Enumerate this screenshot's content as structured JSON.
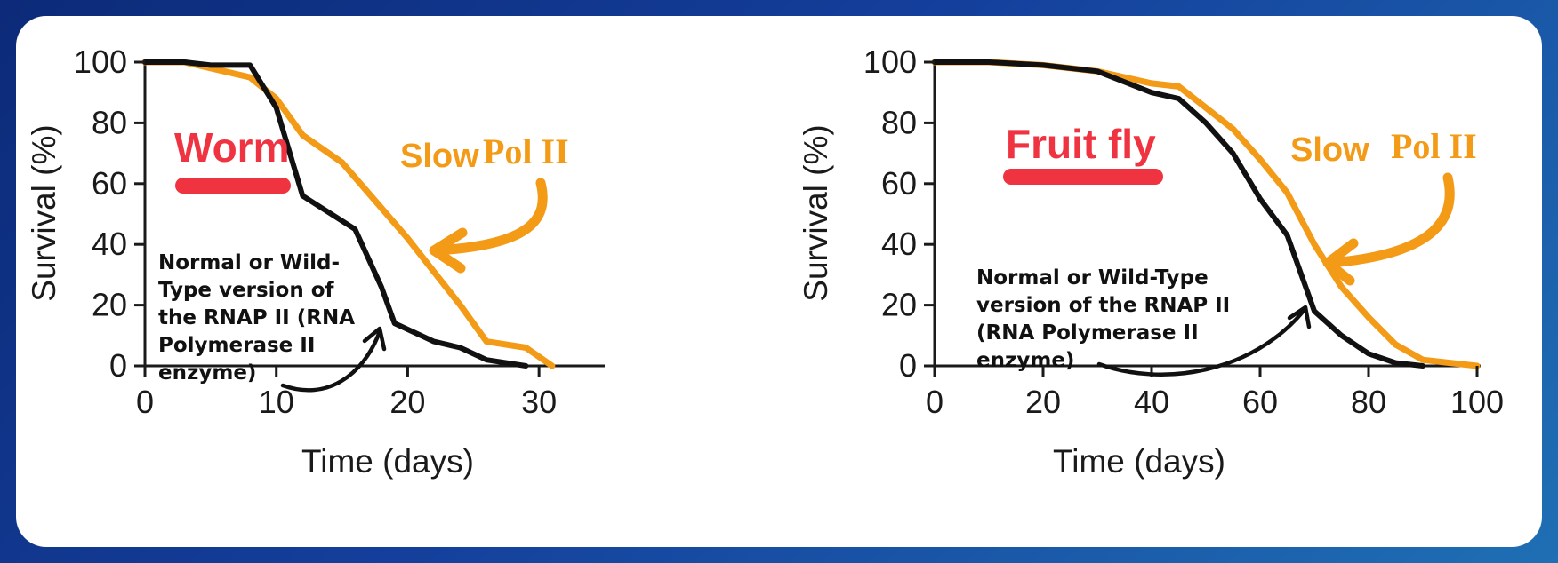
{
  "colors": {
    "slow_series": "#f39a16",
    "wildtype_series": "#111111",
    "organism_label": "#ef3340",
    "axis": "#1a1a1a"
  },
  "chart_data": [
    {
      "type": "line",
      "panel": "left",
      "organism_label": "Worm",
      "xlabel": "Time (days)",
      "ylabel": "Survival (%)",
      "xlim": [
        0,
        35
      ],
      "ylim": [
        0,
        100
      ],
      "xticks": [
        "0",
        "10",
        "20",
        "30"
      ],
      "yticks": [
        "0",
        "20",
        "40",
        "60",
        "80",
        "100"
      ],
      "series": [
        {
          "key": "slow",
          "x": [
            0,
            3,
            5,
            8,
            10,
            12,
            15,
            18,
            20,
            24,
            26,
            29,
            31
          ],
          "y": [
            100,
            100,
            98,
            95,
            88,
            76,
            67,
            52,
            42,
            20,
            8,
            6,
            0
          ]
        },
        {
          "key": "wildtype",
          "x": [
            0,
            3,
            5,
            8,
            10,
            12,
            16,
            18,
            19,
            22,
            24,
            26,
            29
          ],
          "y": [
            100,
            100,
            99,
            99,
            85,
            56,
            45,
            26,
            14,
            8,
            6,
            2,
            0
          ]
        }
      ],
      "annotations": {
        "slow_word": "Slow",
        "pol": "Pol II",
        "note_lines": [
          "Normal or Wild-",
          "Type version of",
          "the RNAP II (RNA",
          "Polymerase II",
          "enzyme)"
        ]
      }
    },
    {
      "type": "line",
      "panel": "right",
      "organism_label": "Fruit fly",
      "xlabel": "Time (days)",
      "ylabel": "Survival (%)",
      "xlim": [
        0,
        100
      ],
      "ylim": [
        0,
        100
      ],
      "xticks": [
        "0",
        "20",
        "40",
        "60",
        "80",
        "100"
      ],
      "yticks": [
        "0",
        "20",
        "40",
        "60",
        "80",
        "100"
      ],
      "series": [
        {
          "key": "slow",
          "x": [
            0,
            10,
            20,
            30,
            40,
            45,
            50,
            55,
            60,
            65,
            70,
            75,
            80,
            85,
            90,
            95,
            100
          ],
          "y": [
            100,
            100,
            99,
            97,
            93,
            92,
            85,
            78,
            68,
            57,
            40,
            26,
            16,
            7,
            2,
            1,
            0
          ]
        },
        {
          "key": "wildtype",
          "x": [
            0,
            10,
            20,
            30,
            40,
            45,
            50,
            55,
            60,
            65,
            70,
            75,
            80,
            85,
            90
          ],
          "y": [
            100,
            100,
            99,
            97,
            90,
            88,
            80,
            70,
            55,
            43,
            18,
            10,
            4,
            1,
            0
          ]
        }
      ],
      "annotations": {
        "slow_word": "Slow",
        "pol": "Pol II",
        "note_lines": [
          "Normal or Wild-Type",
          "version of the RNAP II",
          "(RNA Polymerase II",
          "enzyme)"
        ]
      }
    }
  ]
}
